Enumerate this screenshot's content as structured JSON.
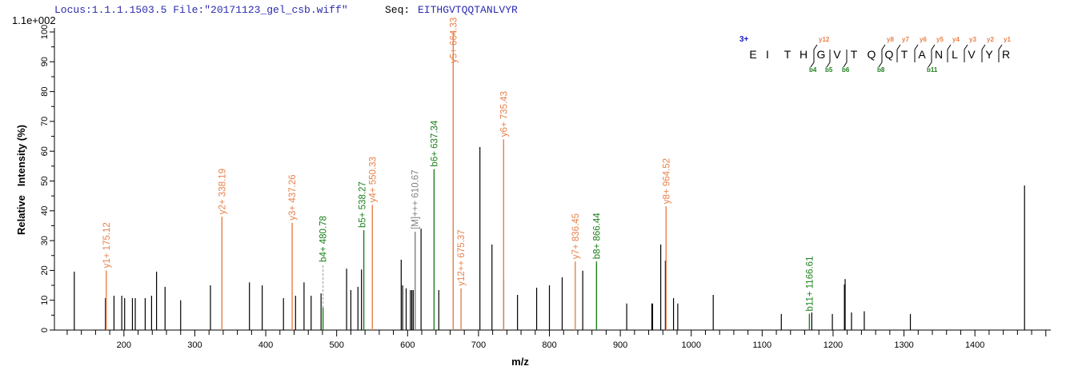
{
  "header": {
    "locus": "Locus:1.1.1.1503.5 File:\"20171123_gel_csb.wiff\"",
    "seq_label": "Seq:",
    "seq_value": "EITHGVTQQTANLVYR",
    "y_scale_label": "1.1e+002"
  },
  "colors": {
    "y_ion": "#e8804a",
    "b_ion": "#1a7f1a",
    "precursor": "#808080",
    "unassigned": "#000000",
    "header_text": "#2b2bb0",
    "charge": "#1a1acc"
  },
  "sequence_panel": {
    "charge": "3+",
    "residues": [
      "E",
      "I",
      "T",
      "H",
      "G",
      "V",
      "T",
      "Q",
      "Q",
      "T",
      "A",
      "N",
      "L",
      "V",
      "Y",
      "R"
    ],
    "y_fragments": [
      {
        "label": "y12",
        "after": 4
      },
      {
        "label": "y8",
        "after": 8
      },
      {
        "label": "y7",
        "after": 9
      },
      {
        "label": "y6",
        "after": 10
      },
      {
        "label": "y5",
        "after": 11
      },
      {
        "label": "y4",
        "after": 12
      },
      {
        "label": "y3",
        "after": 13
      },
      {
        "label": "y2",
        "after": 14
      },
      {
        "label": "y1",
        "after": 15
      }
    ],
    "b_fragments": [
      {
        "label": "b4",
        "after": 4
      },
      {
        "label": "b5",
        "after": 5
      },
      {
        "label": "b6",
        "after": 6
      },
      {
        "label": "b8",
        "after": 8
      },
      {
        "label": "b11",
        "after": 11
      }
    ]
  },
  "chart_data": {
    "type": "bar",
    "title": "",
    "xlabel": "m/z",
    "ylabel": "Relative   Intensity (%)",
    "xlim": [
      102,
      1507
    ],
    "ylim": [
      0,
      100
    ],
    "x_ticks": [
      200,
      300,
      400,
      500,
      600,
      700,
      800,
      900,
      1000,
      1100,
      1200,
      1300,
      1400
    ],
    "y_ticks": [
      0,
      10,
      20,
      30,
      40,
      50,
      60,
      70,
      80,
      90,
      100
    ],
    "grid": false,
    "annotated_peaks": [
      {
        "mz": 175.12,
        "intensity": 20,
        "label": "y1+ 175.12",
        "type": "y"
      },
      {
        "mz": 338.19,
        "intensity": 38,
        "label": "y2+ 338.19",
        "type": "y"
      },
      {
        "mz": 437.26,
        "intensity": 36,
        "label": "y3+ 437.26",
        "type": "y"
      },
      {
        "mz": 480.78,
        "intensity": 7.5,
        "label": "b4+ 480.78",
        "type": "b",
        "dashed_to": 22
      },
      {
        "mz": 538.27,
        "intensity": 33.5,
        "label": "b5+ 538.27",
        "type": "b"
      },
      {
        "mz": 550.33,
        "intensity": 42,
        "label": "y4+ 550.33",
        "type": "y"
      },
      {
        "mz": 610.67,
        "intensity": 33,
        "label": "[M]+++ 610.67",
        "type": "precursor"
      },
      {
        "mz": 637.34,
        "intensity": 54,
        "label": "b6+ 637.34",
        "type": "b"
      },
      {
        "mz": 664.33,
        "intensity": 100,
        "label": "y5+ 664.33",
        "type": "y"
      },
      {
        "mz": 675.37,
        "intensity": 14,
        "label": "y12++ 675.37",
        "type": "y"
      },
      {
        "mz": 735.43,
        "intensity": 64,
        "label": "y6+ 735.43",
        "type": "y"
      },
      {
        "mz": 836.45,
        "intensity": 23,
        "label": "y7+ 836.45",
        "type": "y"
      },
      {
        "mz": 866.44,
        "intensity": 23,
        "label": "b8+ 866.44",
        "type": "b"
      },
      {
        "mz": 964.52,
        "intensity": 41.5,
        "label": "y8+ 964.52",
        "type": "y"
      },
      {
        "mz": 1166.61,
        "intensity": 5.5,
        "label": "b11+ 1166.61",
        "type": "b"
      }
    ],
    "unassigned_peaks": [
      [
        130,
        19.6
      ],
      [
        174,
        10.7
      ],
      [
        186,
        11.5
      ],
      [
        197,
        11.5
      ],
      [
        201,
        10.7
      ],
      [
        212,
        10.7
      ],
      [
        216,
        10.7
      ],
      [
        230,
        10.7
      ],
      [
        239,
        11.5
      ],
      [
        246,
        19.6
      ],
      [
        258,
        14.5
      ],
      [
        280,
        10
      ],
      [
        322,
        15
      ],
      [
        377,
        16
      ],
      [
        395,
        15
      ],
      [
        425,
        10.7
      ],
      [
        442,
        11.5
      ],
      [
        454,
        16
      ],
      [
        464,
        11.5
      ],
      [
        478,
        12.3
      ],
      [
        514,
        20.6
      ],
      [
        520,
        13.4
      ],
      [
        530,
        14.5
      ],
      [
        535,
        20.3
      ],
      [
        591,
        23.6
      ],
      [
        593,
        15
      ],
      [
        598,
        14
      ],
      [
        604,
        13.4
      ],
      [
        606,
        13.4
      ],
      [
        608,
        13.4
      ],
      [
        619,
        34
      ],
      [
        644,
        13.4
      ],
      [
        702,
        61.4
      ],
      [
        719,
        28.7
      ],
      [
        735.6,
        17
      ],
      [
        755,
        11.8
      ],
      [
        782,
        14.2
      ],
      [
        800,
        15
      ],
      [
        818,
        17.7
      ],
      [
        847,
        19.9
      ],
      [
        909,
        8.9
      ],
      [
        944.5,
        8.9
      ],
      [
        945.5,
        8.9
      ],
      [
        957,
        28.7
      ],
      [
        963.5,
        23.3
      ],
      [
        975,
        10.7
      ],
      [
        981,
        8.9
      ],
      [
        1031,
        11.8
      ],
      [
        1127,
        5.4
      ],
      [
        1170,
        5.9
      ],
      [
        1199,
        5.4
      ],
      [
        1216,
        15.3
      ],
      [
        1217,
        17.1
      ],
      [
        1226,
        5.9
      ],
      [
        1244,
        6.3
      ],
      [
        1309,
        5.4
      ],
      [
        1470,
        48.5
      ]
    ]
  }
}
